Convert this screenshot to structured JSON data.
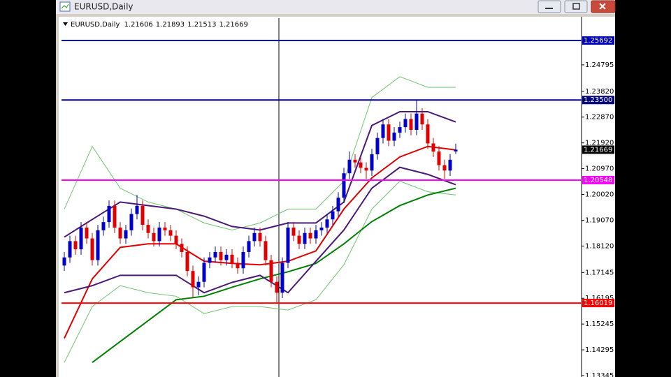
{
  "chart_data": {
    "type": "candlestick",
    "title": "EURUSD,Daily",
    "up_color": "#0000c8",
    "down_color": "#e00000",
    "xlim": [
      -0.5,
      92.5
    ],
    "ylim": [
      1.13294,
      1.2649
    ],
    "yticks": [
      1.24795,
      {
        "value": 1.2382,
        "label": "1.23820"
      },
      {
        "value": 1.2287,
        "label": "1.22870"
      },
      {
        "value": 1.2192,
        "label": "1.21920"
      },
      {
        "value": 1.2097,
        "label": "1.20970"
      },
      {
        "value": 1.2002,
        "label": "1.20020"
      },
      {
        "value": 1.1907,
        "label": "1.19070"
      },
      {
        "value": 1.1812,
        "label": "1.18120"
      },
      1.17145,
      1.16195,
      1.15245,
      1.14295,
      1.13345
    ],
    "x": [
      0,
      1,
      2,
      3,
      4,
      5,
      6,
      7,
      8,
      9,
      10,
      11,
      12,
      13,
      14,
      15,
      16,
      17,
      18,
      19,
      20,
      21,
      22,
      23,
      24,
      25,
      26,
      27,
      28,
      29,
      30,
      31,
      32,
      33,
      34,
      35,
      36,
      37,
      38,
      39,
      40,
      41,
      42,
      43,
      44,
      45,
      46,
      47,
      48,
      49,
      50,
      51,
      52,
      53,
      54,
      55,
      56,
      57,
      58,
      59,
      60,
      61,
      62,
      63,
      64,
      65,
      66,
      67,
      68,
      69,
      70
    ],
    "open": [
      1.174,
      1.177,
      1.183,
      1.18,
      1.188,
      1.184,
      1.176,
      1.187,
      1.19,
      1.196,
      1.188,
      1.184,
      1.187,
      1.193,
      1.196,
      1.189,
      1.186,
      1.183,
      1.188,
      1.187,
      1.185,
      1.182,
      1.179,
      1.172,
      1.166,
      1.168,
      1.175,
      1.177,
      1.179,
      1.176,
      1.178,
      1.175,
      1.173,
      1.179,
      1.183,
      1.186,
      1.183,
      1.176,
      1.168,
      1.164,
      1.175,
      1.188,
      1.185,
      1.182,
      1.186,
      1.184,
      1.187,
      1.188,
      1.191,
      1.194,
      1.199,
      1.208,
      1.213,
      1.212,
      1.21,
      1.209,
      1.215,
      1.221,
      1.226,
      1.22,
      1.223,
      1.225,
      1.228,
      1.224,
      1.23,
      1.226,
      1.219,
      1.216,
      1.211,
      1.209,
      1.21606
    ],
    "high": [
      1.179,
      1.185,
      1.185,
      1.19,
      1.19,
      1.186,
      1.189,
      1.192,
      1.198,
      1.198,
      1.19,
      1.189,
      1.195,
      1.2,
      1.198,
      1.191,
      1.188,
      1.19,
      1.19,
      1.189,
      1.187,
      1.184,
      1.181,
      1.174,
      1.17,
      1.177,
      1.179,
      1.181,
      1.181,
      1.18,
      1.18,
      1.177,
      1.181,
      1.185,
      1.188,
      1.188,
      1.185,
      1.178,
      1.17,
      1.177,
      1.19,
      1.19,
      1.187,
      1.188,
      1.188,
      1.189,
      1.19,
      1.193,
      1.196,
      1.201,
      1.21,
      1.216,
      1.215,
      1.214,
      1.212,
      1.217,
      1.223,
      1.228,
      1.228,
      1.225,
      1.227,
      1.23,
      1.23,
      1.2349,
      1.232,
      1.228,
      1.221,
      1.218,
      1.213,
      1.215,
      1.21893
    ],
    "low": [
      1.172,
      1.175,
      1.178,
      1.178,
      1.182,
      1.174,
      1.174,
      1.185,
      1.188,
      1.186,
      1.182,
      1.182,
      1.185,
      1.191,
      1.187,
      1.184,
      1.181,
      1.181,
      1.185,
      1.183,
      1.18,
      1.177,
      1.17,
      1.162,
      1.163,
      1.166,
      1.173,
      1.175,
      1.174,
      1.174,
      1.173,
      1.171,
      1.171,
      1.177,
      1.181,
      1.181,
      1.174,
      1.166,
      1.1604,
      1.162,
      1.173,
      1.183,
      1.18,
      1.18,
      1.182,
      1.182,
      1.185,
      1.186,
      1.189,
      1.192,
      1.197,
      1.206,
      1.21,
      1.208,
      1.206,
      1.207,
      1.213,
      1.219,
      1.218,
      1.218,
      1.221,
      1.223,
      1.222,
      1.222,
      1.224,
      1.217,
      1.214,
      1.209,
      1.206,
      1.207,
      1.21513
    ],
    "close": [
      1.177,
      1.183,
      1.18,
      1.188,
      1.184,
      1.176,
      1.187,
      1.19,
      1.196,
      1.188,
      1.184,
      1.187,
      1.193,
      1.196,
      1.189,
      1.186,
      1.183,
      1.188,
      1.187,
      1.185,
      1.182,
      1.179,
      1.172,
      1.166,
      1.168,
      1.175,
      1.177,
      1.179,
      1.176,
      1.178,
      1.175,
      1.173,
      1.179,
      1.183,
      1.186,
      1.183,
      1.176,
      1.168,
      1.164,
      1.175,
      1.188,
      1.185,
      1.182,
      1.186,
      1.184,
      1.187,
      1.188,
      1.191,
      1.194,
      1.199,
      1.208,
      1.213,
      1.212,
      1.21,
      1.209,
      1.215,
      1.221,
      1.226,
      1.22,
      1.223,
      1.225,
      1.228,
      1.224,
      1.23,
      1.226,
      1.219,
      1.216,
      1.211,
      1.209,
      1.213,
      1.21669
    ],
    "line_x": [
      0,
      5,
      10,
      15,
      20,
      25,
      30,
      35,
      40,
      45,
      50,
      55,
      60,
      65,
      70
    ],
    "lines": [
      {
        "color": "#6fc46f",
        "width": 1,
        "values": [
          1.1948,
          1.2179,
          1.2025,
          1.1974,
          1.1948,
          1.1897,
          1.1871,
          1.1897,
          1.1948,
          1.1948,
          1.2051,
          1.2359,
          1.2436,
          1.2397,
          1.2397
        ]
      },
      {
        "color": "#6fc46f",
        "width": 1,
        "values": [
          1.1383,
          1.1589,
          1.1666,
          1.164,
          1.1627,
          1.1563,
          1.1589,
          1.1589,
          1.1576,
          1.1614,
          1.1743,
          1.1948,
          1.2051,
          1.2012,
          1.2
        ]
      },
      {
        "color": "#008000",
        "width": 2,
        "values": [
          null,
          1.1383,
          1.146,
          1.1537,
          1.1614,
          1.1627,
          1.166,
          1.1691,
          1.1717,
          1.1748,
          1.182,
          1.1902,
          1.1961,
          1.2,
          1.2025
        ]
      },
      {
        "color": "#e00000",
        "width": 2,
        "values": [
          1.1472,
          1.1691,
          1.1807,
          1.182,
          1.182,
          1.1756,
          1.1748,
          1.1743,
          1.1756,
          1.1794,
          1.1948,
          1.2063,
          1.214,
          1.2179,
          1.2166
        ]
      },
      {
        "color": "#4b1a78",
        "width": 2,
        "values": [
          1.1845,
          1.191,
          1.1974,
          1.1961,
          1.1948,
          1.1922,
          1.1884,
          1.1871,
          1.1897,
          1.1897,
          1.1974,
          1.2256,
          1.2307,
          1.2307,
          1.2269
        ]
      },
      {
        "color": "#4b1a78",
        "width": 2,
        "values": [
          1.164,
          1.1666,
          1.1704,
          1.1704,
          1.1704,
          1.164,
          1.1678,
          1.1704,
          1.164,
          1.1756,
          1.1871,
          1.2025,
          1.2102,
          1.2076,
          1.2038
        ]
      }
    ],
    "levels": [
      {
        "value": 1.25692,
        "color": "#0000c0"
      },
      {
        "value": 1.235,
        "label": "1.23500",
        "color": "#000080"
      },
      {
        "value": 1.20548,
        "color": "#ff00ff"
      },
      {
        "value": 1.16019,
        "color": "#ff0000"
      }
    ]
  }
}
